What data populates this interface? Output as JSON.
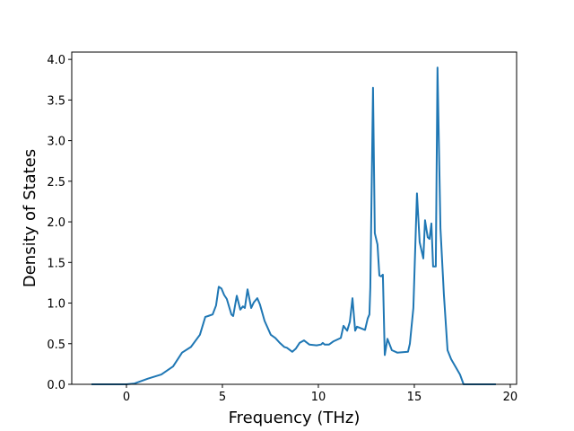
{
  "chart_data": {
    "type": "line",
    "title": "",
    "xlabel": "Frequency (THz)",
    "ylabel": "Density of States",
    "xlim": [
      -2.85,
      20.33
    ],
    "ylim": [
      0,
      4.09
    ],
    "xticks": [
      "0",
      "5",
      "10",
      "15",
      "20"
    ],
    "yticks": [
      "0.0",
      "0.5",
      "1.0",
      "1.5",
      "2.0",
      "2.5",
      "3.0",
      "3.5",
      "4.0"
    ],
    "grid": false,
    "series": [
      {
        "color": "#1f77b4",
        "x": [
          -1.82,
          0,
          0.42,
          1.12,
          1.82,
          2.43,
          2.9,
          3.36,
          3.83,
          4.11,
          4.25,
          4.49,
          4.67,
          4.81,
          4.95,
          5.09,
          5.23,
          5.47,
          5.56,
          5.75,
          5.93,
          6.07,
          6.17,
          6.31,
          6.5,
          6.64,
          6.82,
          6.96,
          7.2,
          7.52,
          7.76,
          7.99,
          8.22,
          8.36,
          8.64,
          8.83,
          9.02,
          9.25,
          9.53,
          9.91,
          10.14,
          10.23,
          10.33,
          10.56,
          10.79,
          11.17,
          11.31,
          11.5,
          11.64,
          11.78,
          11.92,
          12.01,
          12.43,
          12.57,
          12.66,
          12.71,
          12.85,
          12.94,
          13.08,
          13.18,
          13.27,
          13.36,
          13.46,
          13.6,
          13.83,
          14.11,
          14.67,
          14.77,
          14.95,
          15.14,
          15.28,
          15.47,
          15.56,
          15.7,
          15.79,
          15.89,
          15.98,
          16.12,
          16.21,
          16.36,
          16.54,
          16.73,
          16.92,
          17.38,
          17.57,
          19.25
        ],
        "y": [
          0,
          0,
          0.01,
          0.07,
          0.12,
          0.22,
          0.39,
          0.46,
          0.61,
          0.83,
          0.84,
          0.86,
          0.97,
          1.2,
          1.18,
          1.1,
          1.05,
          0.86,
          0.84,
          1.09,
          0.92,
          0.96,
          0.94,
          1.17,
          0.94,
          1.01,
          1.06,
          0.98,
          0.78,
          0.61,
          0.57,
          0.51,
          0.46,
          0.45,
          0.4,
          0.44,
          0.51,
          0.54,
          0.49,
          0.48,
          0.49,
          0.51,
          0.49,
          0.49,
          0.53,
          0.57,
          0.72,
          0.66,
          0.77,
          1.06,
          0.66,
          0.71,
          0.67,
          0.81,
          0.86,
          1.19,
          3.65,
          1.86,
          1.72,
          1.34,
          1.33,
          1.35,
          0.36,
          0.56,
          0.42,
          0.39,
          0.4,
          0.5,
          0.94,
          2.35,
          1.75,
          1.55,
          2.02,
          1.81,
          1.79,
          1.98,
          1.45,
          1.45,
          3.9,
          1.92,
          1.11,
          0.42,
          0.31,
          0.12,
          0,
          0
        ]
      }
    ]
  }
}
